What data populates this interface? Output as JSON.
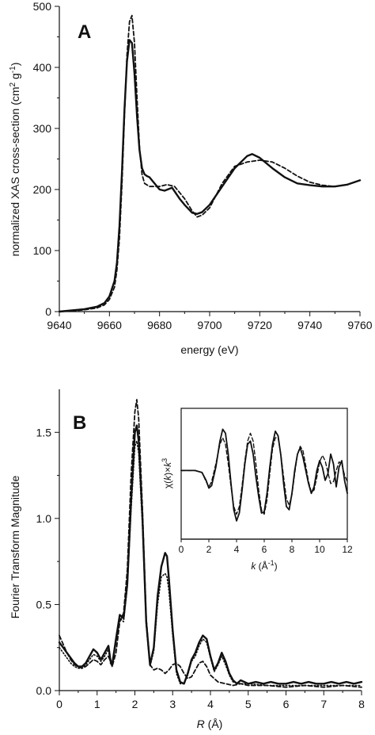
{
  "chart_data": [
    {
      "type": "line",
      "panel": "A",
      "xlabel": "energy (eV)",
      "ylabel_main": "normalized XAS cross-section (cm",
      "ylabel_sup1": "2",
      "ylabel_mid": " g",
      "ylabel_sup2": "-1",
      "ylabel_end": ")",
      "xlim": [
        9640,
        9760
      ],
      "ylim": [
        0,
        500
      ],
      "xticks": [
        9640,
        9660,
        9680,
        9700,
        9720,
        9740,
        9760
      ],
      "yticks": [
        0,
        100,
        200,
        300,
        400,
        500
      ],
      "series": [
        {
          "style": "solid",
          "x": [
            9640,
            9645,
            9650,
            9655,
            9658,
            9660,
            9662,
            9663,
            9664,
            9665,
            9666,
            9667,
            9668,
            9669,
            9670,
            9671,
            9672,
            9673,
            9674,
            9675,
            9676,
            9678,
            9680,
            9682,
            9685,
            9688,
            9690,
            9693,
            9695,
            9697,
            9700,
            9705,
            9710,
            9715,
            9717,
            9720,
            9725,
            9730,
            9735,
            9740,
            9745,
            9750,
            9755,
            9760
          ],
          "y": [
            0,
            2,
            4,
            8,
            14,
            25,
            50,
            80,
            140,
            230,
            330,
            410,
            445,
            440,
            390,
            320,
            265,
            235,
            225,
            222,
            220,
            210,
            200,
            198,
            203,
            185,
            175,
            162,
            160,
            163,
            175,
            205,
            235,
            255,
            258,
            252,
            235,
            220,
            210,
            207,
            205,
            205,
            208,
            215
          ]
        },
        {
          "style": "dashed",
          "x": [
            9640,
            9645,
            9650,
            9655,
            9658,
            9660,
            9662,
            9663,
            9664,
            9665,
            9666,
            9667,
            9668,
            9669,
            9670,
            9671,
            9672,
            9673,
            9674,
            9676,
            9678,
            9680,
            9683,
            9686,
            9690,
            9693,
            9695,
            9697,
            9700,
            9705,
            9710,
            9715,
            9720,
            9725,
            9730,
            9735,
            9740,
            9745,
            9750,
            9755,
            9760
          ],
          "y": [
            0,
            1,
            3,
            6,
            11,
            20,
            40,
            68,
            120,
            210,
            320,
            420,
            475,
            485,
            440,
            350,
            270,
            225,
            210,
            205,
            205,
            205,
            208,
            205,
            185,
            165,
            155,
            158,
            170,
            210,
            238,
            245,
            248,
            245,
            235,
            222,
            212,
            207,
            205,
            208,
            215
          ]
        }
      ]
    },
    {
      "type": "line",
      "panel": "B",
      "xlabel_var": "R",
      "xlabel_unit": " (Å)",
      "ylabel": "Fourier Transform Magnitude",
      "xlim": [
        0,
        8
      ],
      "ylim": [
        0,
        1.75
      ],
      "xticks": [
        0,
        1,
        2,
        3,
        4,
        5,
        6,
        7,
        8
      ],
      "yticks": [
        0.0,
        0.5,
        1.0,
        1.5
      ],
      "ytick_labels": [
        "0.0",
        "0.5",
        "1.0",
        "1.5"
      ],
      "series": [
        {
          "style": "solid",
          "x": [
            0,
            0.1,
            0.2,
            0.3,
            0.4,
            0.5,
            0.6,
            0.7,
            0.8,
            0.9,
            1.0,
            1.1,
            1.2,
            1.3,
            1.35,
            1.4,
            1.5,
            1.6,
            1.7,
            1.8,
            1.9,
            2.0,
            2.05,
            2.1,
            2.2,
            2.3,
            2.4,
            2.5,
            2.6,
            2.7,
            2.8,
            2.85,
            2.9,
            3.0,
            3.1,
            3.2,
            3.3,
            3.4,
            3.5,
            3.6,
            3.7,
            3.8,
            3.9,
            4.0,
            4.1,
            4.2,
            4.3,
            4.4,
            4.5,
            4.6,
            4.7,
            4.8,
            4.9,
            5.0,
            5.2,
            5.4,
            5.6,
            5.8,
            6.0,
            6.2,
            6.4,
            6.6,
            6.8,
            7.0,
            7.2,
            7.4,
            7.6,
            7.8,
            8.0
          ],
          "y": [
            0.28,
            0.25,
            0.22,
            0.19,
            0.16,
            0.14,
            0.14,
            0.16,
            0.2,
            0.24,
            0.22,
            0.18,
            0.22,
            0.26,
            0.18,
            0.15,
            0.3,
            0.44,
            0.42,
            0.62,
            1.1,
            1.5,
            1.54,
            1.45,
            1.0,
            0.4,
            0.15,
            0.25,
            0.55,
            0.72,
            0.8,
            0.78,
            0.65,
            0.35,
            0.12,
            0.05,
            0.04,
            0.1,
            0.18,
            0.22,
            0.28,
            0.32,
            0.3,
            0.2,
            0.12,
            0.16,
            0.22,
            0.17,
            0.1,
            0.06,
            0.04,
            0.06,
            0.05,
            0.04,
            0.05,
            0.04,
            0.05,
            0.04,
            0.04,
            0.05,
            0.04,
            0.05,
            0.04,
            0.04,
            0.05,
            0.04,
            0.05,
            0.04,
            0.05
          ]
        },
        {
          "style": "dashed",
          "x": [
            0,
            0.1,
            0.2,
            0.3,
            0.4,
            0.5,
            0.6,
            0.7,
            0.8,
            0.9,
            1.0,
            1.1,
            1.2,
            1.3,
            1.4,
            1.5,
            1.6,
            1.7,
            1.8,
            1.9,
            2.0,
            2.05,
            2.1,
            2.2,
            2.3,
            2.4,
            2.5,
            2.6,
            2.7,
            2.8,
            2.9,
            3.0,
            3.1,
            3.2,
            3.3,
            3.4,
            3.5,
            3.6,
            3.7,
            3.8,
            3.9,
            4.0,
            4.2,
            4.4,
            4.6,
            4.8,
            5.0,
            5.5,
            6.0,
            6.5,
            7.0,
            7.5,
            8.0
          ],
          "y": [
            0.32,
            0.27,
            0.22,
            0.18,
            0.15,
            0.14,
            0.13,
            0.14,
            0.16,
            0.18,
            0.17,
            0.15,
            0.18,
            0.2,
            0.14,
            0.22,
            0.4,
            0.45,
            0.7,
            1.25,
            1.62,
            1.69,
            1.58,
            1.05,
            0.42,
            0.15,
            0.12,
            0.13,
            0.12,
            0.1,
            0.12,
            0.15,
            0.16,
            0.14,
            0.1,
            0.07,
            0.08,
            0.12,
            0.16,
            0.17,
            0.14,
            0.09,
            0.05,
            0.04,
            0.03,
            0.04,
            0.03,
            0.03,
            0.02,
            0.03,
            0.02,
            0.03,
            0.02
          ]
        },
        {
          "style": "dotted",
          "x": [
            0,
            0.1,
            0.2,
            0.3,
            0.4,
            0.5,
            0.6,
            0.7,
            0.8,
            0.9,
            1.0,
            1.1,
            1.2,
            1.3,
            1.35,
            1.4,
            1.5,
            1.6,
            1.7,
            1.8,
            1.9,
            2.0,
            2.05,
            2.1,
            2.2,
            2.3,
            2.4,
            2.5,
            2.6,
            2.7,
            2.8,
            2.85,
            2.9,
            3.0,
            3.1,
            3.2,
            3.3,
            3.4,
            3.5,
            3.6,
            3.7,
            3.8,
            3.9,
            4.0,
            4.1,
            4.2,
            4.3,
            4.4,
            4.5,
            4.6,
            4.8,
            5.0,
            5.5,
            6.0,
            6.5,
            7.0,
            7.5,
            8.0
          ],
          "y": [
            0.25,
            0.22,
            0.19,
            0.16,
            0.14,
            0.13,
            0.13,
            0.15,
            0.18,
            0.21,
            0.2,
            0.17,
            0.2,
            0.24,
            0.16,
            0.14,
            0.28,
            0.42,
            0.4,
            0.6,
            1.05,
            1.42,
            1.45,
            1.38,
            0.95,
            0.38,
            0.14,
            0.23,
            0.5,
            0.66,
            0.68,
            0.66,
            0.58,
            0.32,
            0.1,
            0.04,
            0.04,
            0.09,
            0.17,
            0.2,
            0.26,
            0.3,
            0.28,
            0.19,
            0.11,
            0.15,
            0.2,
            0.15,
            0.09,
            0.05,
            0.04,
            0.04,
            0.03,
            0.03,
            0.03,
            0.03,
            0.03,
            0.03
          ]
        }
      ],
      "inset": {
        "type": "line",
        "ylabel": "χ(k)×k³",
        "ylabel_chi": "χ(",
        "ylabel_k": "k",
        "ylabel_close": ")",
        "ylabel_times": "×",
        "ylabel_k2": "k",
        "ylabel_sup": "3",
        "xlabel_var": "k",
        "xlabel_unit": " (Å",
        "xlabel_sup": "-1",
        "xlabel_close": ")",
        "xlim": [
          0,
          12
        ],
        "ylim": [
          -1,
          1
        ],
        "xticks": [
          0,
          2,
          4,
          6,
          8,
          10,
          12
        ],
        "series": [
          {
            "style": "solid",
            "x": [
              0,
              1,
              1.5,
              1.8,
              2.0,
              2.2,
              2.5,
              2.8,
              3.0,
              3.2,
              3.4,
              3.6,
              3.8,
              4.0,
              4.2,
              4.4,
              4.6,
              4.8,
              5.0,
              5.2,
              5.4,
              5.6,
              5.8,
              6.0,
              6.2,
              6.4,
              6.6,
              6.8,
              7.0,
              7.2,
              7.4,
              7.6,
              7.8,
              8.0,
              8.2,
              8.4,
              8.6,
              8.8,
              9.0,
              9.2,
              9.4,
              9.6,
              9.8,
              10.0,
              10.2,
              10.4,
              10.6,
              10.8,
              11.0,
              11.2,
              11.4,
              11.6,
              11.8,
              12.0
            ],
            "y": [
              0.05,
              0.05,
              0.02,
              -0.1,
              -0.22,
              -0.18,
              0.1,
              0.5,
              0.68,
              0.62,
              0.3,
              -0.15,
              -0.55,
              -0.72,
              -0.6,
              -0.25,
              0.15,
              0.45,
              0.5,
              0.3,
              -0.05,
              -0.35,
              -0.6,
              -0.58,
              -0.3,
              0.1,
              0.45,
              0.65,
              0.58,
              0.28,
              -0.15,
              -0.5,
              -0.55,
              -0.3,
              0.05,
              0.3,
              0.4,
              0.25,
              0.05,
              -0.15,
              -0.3,
              -0.2,
              0.05,
              0.2,
              0.1,
              -0.1,
              0.0,
              0.3,
              0.15,
              -0.2,
              0.1,
              0.2,
              -0.1,
              -0.3
            ]
          },
          {
            "style": "dashed",
            "x": [
              0,
              1,
              1.5,
              1.8,
              2.0,
              2.2,
              2.5,
              2.8,
              3.0,
              3.2,
              3.4,
              3.6,
              3.8,
              4.0,
              4.2,
              4.4,
              4.6,
              4.8,
              5.0,
              5.2,
              5.4,
              5.6,
              5.8,
              6.0,
              6.2,
              6.4,
              6.6,
              6.8,
              7.0,
              7.2,
              7.4,
              7.6,
              7.8,
              8.0,
              8.2,
              8.4,
              8.6,
              8.8,
              9.0,
              9.2,
              9.4,
              9.6,
              9.8,
              10.0,
              10.2,
              10.4,
              10.6,
              10.8,
              11.0,
              11.2,
              11.4,
              11.6,
              11.8,
              12.0
            ],
            "y": [
              0.05,
              0.05,
              0.02,
              -0.12,
              -0.2,
              -0.12,
              0.15,
              0.45,
              0.55,
              0.45,
              0.15,
              -0.2,
              -0.5,
              -0.62,
              -0.5,
              -0.18,
              0.2,
              0.5,
              0.62,
              0.5,
              0.15,
              -0.25,
              -0.55,
              -0.62,
              -0.4,
              0.0,
              0.38,
              0.55,
              0.55,
              0.3,
              -0.05,
              -0.38,
              -0.48,
              -0.32,
              0.0,
              0.3,
              0.42,
              0.35,
              0.12,
              -0.12,
              -0.28,
              -0.25,
              -0.05,
              0.18,
              0.28,
              0.2,
              0.02,
              -0.15,
              -0.12,
              0.05,
              0.18,
              0.15,
              -0.02,
              -0.12
            ]
          }
        ]
      }
    }
  ]
}
